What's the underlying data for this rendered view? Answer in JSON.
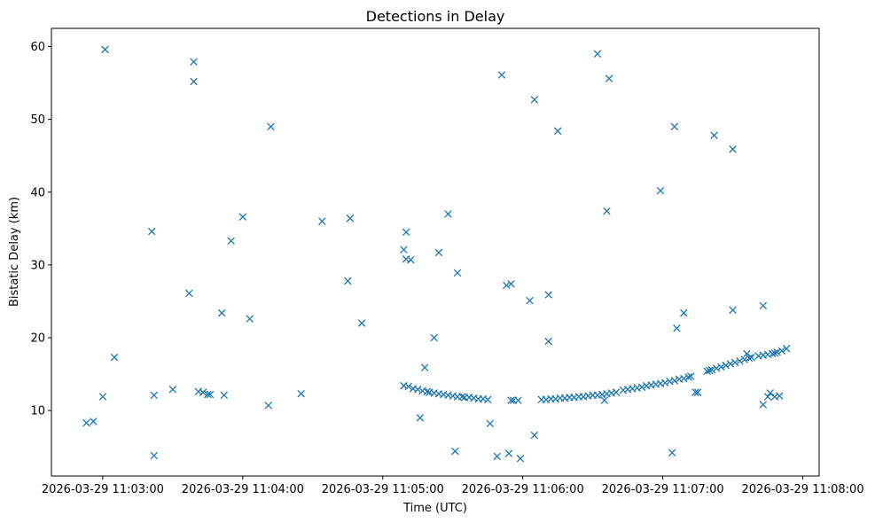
{
  "chart_data": {
    "type": "scatter",
    "title": "Detections in Delay",
    "xlabel": "Time (UTC)",
    "ylabel": "Bistatic Delay (km)",
    "marker": "x",
    "color": "#1f77b4",
    "grid": false,
    "xlim": [
      "2026-03-29 11:02:38",
      "2026-03-29 11:08:07"
    ],
    "ylim": [
      1,
      62.5
    ],
    "xticks": [
      "2026-03-29 11:03:00",
      "2026-03-29 11:04:00",
      "2026-03-29 11:05:00",
      "2026-03-29 11:06:00",
      "2026-03-29 11:07:00",
      "2026-03-29 11:08:00"
    ],
    "yticks": [
      10,
      20,
      30,
      40,
      50,
      60
    ],
    "series": [
      {
        "points": [
          [
            "2026-03-29 11:02:53",
            8.3
          ],
          [
            "2026-03-29 11:02:56",
            8.5
          ],
          [
            "2026-03-29 11:03:00",
            11.9
          ],
          [
            "2026-03-29 11:03:01",
            59.6
          ],
          [
            "2026-03-29 11:03:05",
            17.3
          ],
          [
            "2026-03-29 11:03:21",
            34.6
          ],
          [
            "2026-03-29 11:03:22",
            12.1
          ],
          [
            "2026-03-29 11:03:22",
            3.8
          ],
          [
            "2026-03-29 11:03:30",
            12.9
          ],
          [
            "2026-03-29 11:03:37",
            26.1
          ],
          [
            "2026-03-29 11:03:39",
            57.9
          ],
          [
            "2026-03-29 11:03:39",
            55.2
          ],
          [
            "2026-03-29 11:03:41",
            12.6
          ],
          [
            "2026-03-29 11:03:43",
            12.5
          ],
          [
            "2026-03-29 11:03:45",
            12.2
          ],
          [
            "2026-03-29 11:03:46",
            12.2
          ],
          [
            "2026-03-29 11:03:51",
            23.4
          ],
          [
            "2026-03-29 11:03:52",
            12.1
          ],
          [
            "2026-03-29 11:03:55",
            33.3
          ],
          [
            "2026-03-29 11:04:00",
            36.6
          ],
          [
            "2026-03-29 11:04:03",
            22.6
          ],
          [
            "2026-03-29 11:04:11",
            10.7
          ],
          [
            "2026-03-29 11:04:12",
            49.0
          ],
          [
            "2026-03-29 11:04:25",
            12.3
          ],
          [
            "2026-03-29 11:04:34",
            36.0
          ],
          [
            "2026-03-29 11:04:45",
            27.8
          ],
          [
            "2026-03-29 11:04:46",
            36.4
          ],
          [
            "2026-03-29 11:04:51",
            22.0
          ],
          [
            "2026-03-29 11:05:09",
            32.1
          ],
          [
            "2026-03-29 11:05:09",
            13.4
          ],
          [
            "2026-03-29 11:05:10",
            34.5
          ],
          [
            "2026-03-29 11:05:10",
            30.8
          ],
          [
            "2026-03-29 11:05:11",
            13.3
          ],
          [
            "2026-03-29 11:05:12",
            30.7
          ],
          [
            "2026-03-29 11:05:13",
            13.0
          ],
          [
            "2026-03-29 11:05:15",
            12.9
          ],
          [
            "2026-03-29 11:05:16",
            9.0
          ],
          [
            "2026-03-29 11:05:17",
            12.7
          ],
          [
            "2026-03-29 11:05:18",
            15.9
          ],
          [
            "2026-03-29 11:05:19",
            12.6
          ],
          [
            "2026-03-29 11:05:20",
            12.5
          ],
          [
            "2026-03-29 11:05:22",
            12.4
          ],
          [
            "2026-03-29 11:05:22",
            20.0
          ],
          [
            "2026-03-29 11:05:24",
            31.7
          ],
          [
            "2026-03-29 11:05:24",
            12.3
          ],
          [
            "2026-03-29 11:05:26",
            12.2
          ],
          [
            "2026-03-29 11:05:28",
            37.0
          ],
          [
            "2026-03-29 11:05:28",
            12.1
          ],
          [
            "2026-03-29 11:05:30",
            12.0
          ],
          [
            "2026-03-29 11:05:31",
            4.4
          ],
          [
            "2026-03-29 11:05:32",
            28.9
          ],
          [
            "2026-03-29 11:05:32",
            11.9
          ],
          [
            "2026-03-29 11:05:34",
            11.9
          ],
          [
            "2026-03-29 11:05:35",
            11.8
          ],
          [
            "2026-03-29 11:05:37",
            11.8
          ],
          [
            "2026-03-29 11:05:39",
            11.7
          ],
          [
            "2026-03-29 11:05:41",
            11.6
          ],
          [
            "2026-03-29 11:05:43",
            11.6
          ],
          [
            "2026-03-29 11:05:45",
            11.5
          ],
          [
            "2026-03-29 11:05:46",
            8.2
          ],
          [
            "2026-03-29 11:05:49",
            3.7
          ],
          [
            "2026-03-29 11:05:51",
            56.1
          ],
          [
            "2026-03-29 11:05:53",
            27.2
          ],
          [
            "2026-03-29 11:05:54",
            4.1
          ],
          [
            "2026-03-29 11:05:55",
            27.4
          ],
          [
            "2026-03-29 11:05:55",
            11.4
          ],
          [
            "2026-03-29 11:05:56",
            11.4
          ],
          [
            "2026-03-29 11:05:58",
            11.4
          ],
          [
            "2026-03-29 11:05:59",
            3.4
          ],
          [
            "2026-03-29 11:06:03",
            25.1
          ],
          [
            "2026-03-29 11:06:05",
            52.7
          ],
          [
            "2026-03-29 11:06:05",
            6.6
          ],
          [
            "2026-03-29 11:06:08",
            11.5
          ],
          [
            "2026-03-29 11:06:10",
            11.5
          ],
          [
            "2026-03-29 11:06:11",
            25.9
          ],
          [
            "2026-03-29 11:06:11",
            19.5
          ],
          [
            "2026-03-29 11:06:12",
            11.6
          ],
          [
            "2026-03-29 11:06:14",
            11.6
          ],
          [
            "2026-03-29 11:06:15",
            48.4
          ],
          [
            "2026-03-29 11:06:16",
            11.7
          ],
          [
            "2026-03-29 11:06:18",
            11.7
          ],
          [
            "2026-03-29 11:06:20",
            11.8
          ],
          [
            "2026-03-29 11:06:22",
            11.8
          ],
          [
            "2026-03-29 11:06:24",
            11.9
          ],
          [
            "2026-03-29 11:06:26",
            11.9
          ],
          [
            "2026-03-29 11:06:28",
            12.0
          ],
          [
            "2026-03-29 11:06:30",
            12.1
          ],
          [
            "2026-03-29 11:06:32",
            12.1
          ],
          [
            "2026-03-29 11:06:34",
            12.2
          ],
          [
            "2026-03-29 11:06:35",
            11.4
          ],
          [
            "2026-03-29 11:06:36",
            12.3
          ],
          [
            "2026-03-29 11:06:38",
            12.4
          ],
          [
            "2026-03-29 11:06:40",
            12.5
          ],
          [
            "2026-03-29 11:06:32",
            59.0
          ],
          [
            "2026-03-29 11:06:37",
            55.6
          ],
          [
            "2026-03-29 11:06:36",
            37.4
          ],
          [
            "2026-03-29 11:06:43",
            12.8
          ],
          [
            "2026-03-29 11:06:45",
            12.9
          ],
          [
            "2026-03-29 11:06:47",
            13.0
          ],
          [
            "2026-03-29 11:06:49",
            13.1
          ],
          [
            "2026-03-29 11:06:51",
            13.2
          ],
          [
            "2026-03-29 11:06:53",
            13.4
          ],
          [
            "2026-03-29 11:06:55",
            13.5
          ],
          [
            "2026-03-29 11:06:57",
            13.6
          ],
          [
            "2026-03-29 11:06:59",
            13.7
          ],
          [
            "2026-03-29 11:06:59",
            40.2
          ],
          [
            "2026-03-29 11:07:01",
            13.8
          ],
          [
            "2026-03-29 11:07:03",
            14.0
          ],
          [
            "2026-03-29 11:07:04",
            4.2
          ],
          [
            "2026-03-29 11:07:05",
            49.0
          ],
          [
            "2026-03-29 11:07:05",
            14.1
          ],
          [
            "2026-03-29 11:07:06",
            21.3
          ],
          [
            "2026-03-29 11:07:07",
            14.3
          ],
          [
            "2026-03-29 11:07:09",
            23.4
          ],
          [
            "2026-03-29 11:07:09",
            14.4
          ],
          [
            "2026-03-29 11:07:11",
            14.6
          ],
          [
            "2026-03-29 11:07:12",
            14.7
          ],
          [
            "2026-03-29 11:07:14",
            12.5
          ],
          [
            "2026-03-29 11:07:15",
            12.5
          ],
          [
            "2026-03-29 11:07:19",
            15.4
          ],
          [
            "2026-03-29 11:07:20",
            15.5
          ],
          [
            "2026-03-29 11:07:21",
            15.6
          ],
          [
            "2026-03-29 11:07:22",
            47.8
          ],
          [
            "2026-03-29 11:07:23",
            15.8
          ],
          [
            "2026-03-29 11:07:25",
            16.0
          ],
          [
            "2026-03-29 11:07:27",
            16.2
          ],
          [
            "2026-03-29 11:07:29",
            16.4
          ],
          [
            "2026-03-29 11:07:30",
            23.8
          ],
          [
            "2026-03-29 11:07:30",
            45.9
          ],
          [
            "2026-03-29 11:07:31",
            16.6
          ],
          [
            "2026-03-29 11:07:33",
            16.8
          ],
          [
            "2026-03-29 11:07:35",
            17.0
          ],
          [
            "2026-03-29 11:07:36",
            17.8
          ],
          [
            "2026-03-29 11:07:37",
            17.2
          ],
          [
            "2026-03-29 11:07:38",
            17.3
          ],
          [
            "2026-03-29 11:07:41",
            17.5
          ],
          [
            "2026-03-29 11:07:43",
            17.6
          ],
          [
            "2026-03-29 11:07:43",
            24.4
          ],
          [
            "2026-03-29 11:07:43",
            10.8
          ],
          [
            "2026-03-29 11:07:45",
            11.9
          ],
          [
            "2026-03-29 11:07:45",
            17.7
          ],
          [
            "2026-03-29 11:07:46",
            12.4
          ],
          [
            "2026-03-29 11:07:47",
            17.8
          ],
          [
            "2026-03-29 11:07:48",
            11.9
          ],
          [
            "2026-03-29 11:07:48",
            17.9
          ],
          [
            "2026-03-29 11:07:49",
            18.0
          ],
          [
            "2026-03-29 11:07:50",
            12.0
          ],
          [
            "2026-03-29 11:07:51",
            18.2
          ],
          [
            "2026-03-29 11:07:53",
            18.5
          ]
        ]
      }
    ]
  }
}
